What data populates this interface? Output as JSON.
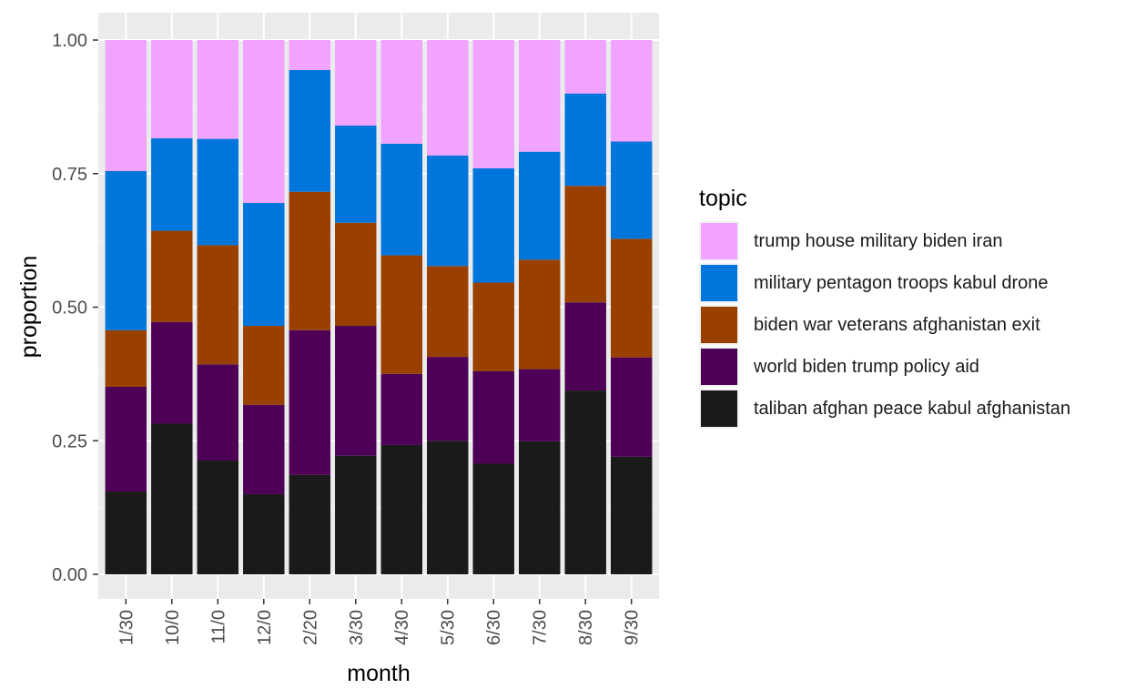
{
  "chart_data": {
    "type": "bar",
    "stacked": true,
    "xlabel": "month",
    "ylabel": "proportion",
    "ylim": [
      0,
      1
    ],
    "yticks": [
      "0.00",
      "0.25",
      "0.50",
      "0.75",
      "1.00"
    ],
    "categories": [
      "1/30",
      "10/0",
      "11/0",
      "12/0",
      "2/20",
      "3/30",
      "4/30",
      "5/30",
      "6/30",
      "7/30",
      "8/30",
      "9/30"
    ],
    "legend_title": "topic",
    "legend_position": "right",
    "grid": true,
    "series": [
      {
        "name": "taliban afghan peace kabul afghanistan",
        "color": "#1a1a1a",
        "values": [
          0.155,
          0.282,
          0.213,
          0.15,
          0.186,
          0.222,
          0.242,
          0.25,
          0.207,
          0.249,
          0.344,
          0.22
        ]
      },
      {
        "name": "world biden trump policy aid",
        "color": "#4d0055",
        "values": [
          0.196,
          0.19,
          0.18,
          0.167,
          0.271,
          0.243,
          0.133,
          0.157,
          0.173,
          0.135,
          0.165,
          0.186
        ]
      },
      {
        "name": "biden war veterans afghanistan exit",
        "color": "#993f00",
        "values": [
          0.106,
          0.171,
          0.223,
          0.148,
          0.259,
          0.193,
          0.222,
          0.17,
          0.166,
          0.205,
          0.218,
          0.222
        ]
      },
      {
        "name": "military pentagon troops kabul drone",
        "color": "#0075dc",
        "values": [
          0.298,
          0.173,
          0.199,
          0.23,
          0.228,
          0.182,
          0.209,
          0.207,
          0.214,
          0.202,
          0.173,
          0.182
        ]
      },
      {
        "name": "trump house military biden iran",
        "color": "#f0a3ff",
        "values": [
          0.245,
          0.184,
          0.185,
          0.305,
          0.056,
          0.16,
          0.194,
          0.216,
          0.24,
          0.209,
          0.1,
          0.19
        ]
      }
    ]
  }
}
